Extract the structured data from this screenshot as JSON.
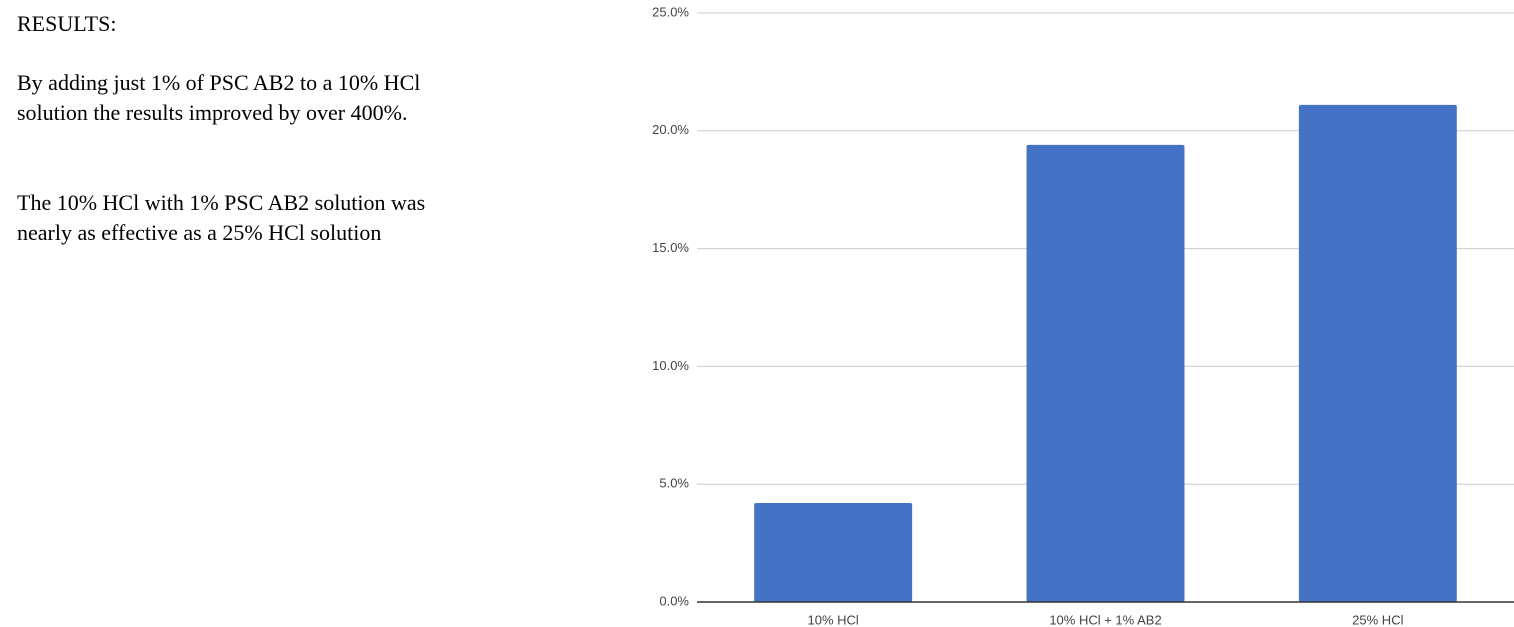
{
  "text": {
    "heading": "RESULTS:",
    "paragraphs": [
      [
        "By adding just 1% of PSC AB2 to a 10% HCl",
        "solution the results  improved by over 400%."
      ],
      [
        "The 10% HCl with 1% PSC AB2  solution was",
        "nearly as effective as a 25% HCl solution"
      ]
    ]
  },
  "chart_data": {
    "type": "bar",
    "categories": [
      "10% HCl",
      "10% HCl + 1% AB2",
      "25% HCl"
    ],
    "values": [
      4.2,
      19.4,
      21.1
    ],
    "color": "#4472c4",
    "ylim": [
      0,
      25
    ],
    "yticks": [
      {
        "value": 0,
        "label": "0.0%"
      },
      {
        "value": 5,
        "label": "5.0%"
      },
      {
        "value": 10,
        "label": "10.0%"
      },
      {
        "value": 15,
        "label": "15.0%"
      },
      {
        "value": 20,
        "label": "20.0%"
      },
      {
        "value": 25,
        "label": "25.0%"
      }
    ],
    "grid": true
  }
}
